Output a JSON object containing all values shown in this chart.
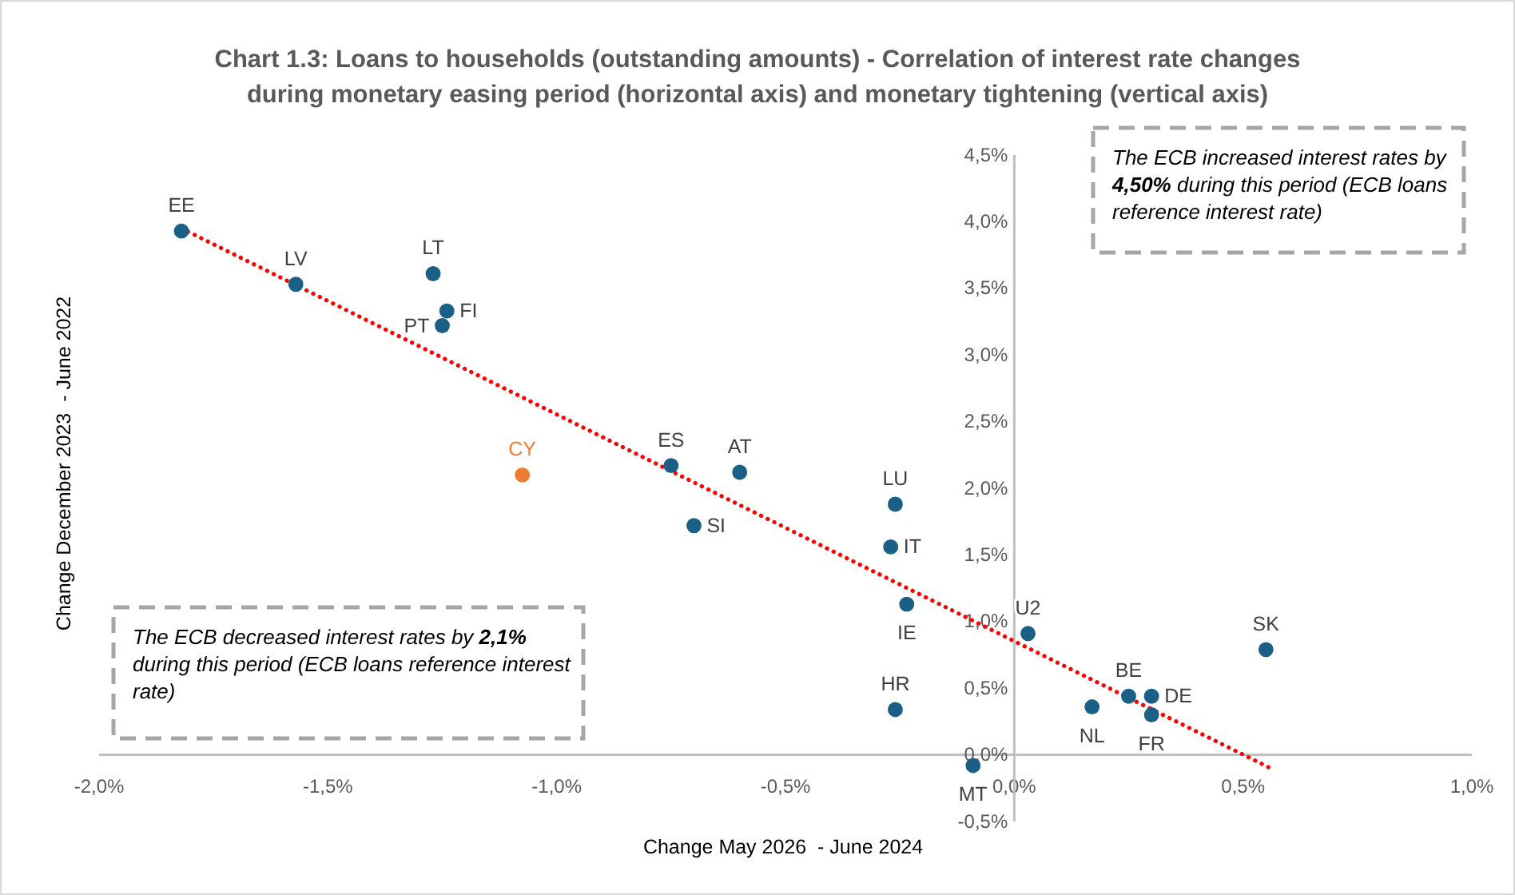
{
  "chart_data": {
    "type": "scatter",
    "title": "Chart 1.3: Loans to households (outstanding amounts) - Correlation of interest rate changes during monetary easing period (horizontal axis) and monetary tightening (vertical axis)",
    "xlabel": "Change May 2026  - June 2024",
    "ylabel": "Change December 2023  - June 2022",
    "xlim": [
      -2.0,
      1.0
    ],
    "xticks": [
      {
        "value": -2.0,
        "label": "-2,0%"
      },
      {
        "value": -1.5,
        "label": "-1,5%"
      },
      {
        "value": -1.0,
        "label": "-1,0%"
      },
      {
        "value": -0.5,
        "label": "-0,5%"
      },
      {
        "value": 0.0,
        "label": "0,0%"
      },
      {
        "value": 0.5,
        "label": "0,5%"
      },
      {
        "value": 1.0,
        "label": "1,0%"
      }
    ],
    "ylim": [
      -0.5,
      4.5
    ],
    "yticks": [
      {
        "value": -0.5,
        "label": "-0,5%"
      },
      {
        "value": 0.0,
        "label": "0,0%"
      },
      {
        "value": 0.5,
        "label": "0,5%"
      },
      {
        "value": 1.0,
        "label": "1,0%"
      },
      {
        "value": 1.5,
        "label": "1,5%"
      },
      {
        "value": 2.0,
        "label": "2,0%"
      },
      {
        "value": 2.5,
        "label": "2,5%"
      },
      {
        "value": 3.0,
        "label": "3,0%"
      },
      {
        "value": 3.5,
        "label": "3,5%"
      },
      {
        "value": 4.0,
        "label": "4,0%"
      },
      {
        "value": 4.5,
        "label": "4,5%"
      }
    ],
    "grid": false,
    "legend": false,
    "marker": "circle",
    "series": [
      {
        "type": "line",
        "x": [
          -1.82,
          0.56
        ],
        "values": [
          3.95,
          -0.1
        ],
        "color": "#ff0000",
        "line_style": "dotted",
        "marker": "none"
      },
      {
        "name": "EE",
        "x": [
          -1.82
        ],
        "values": [
          3.93
        ],
        "color": "#1a5f85"
      },
      {
        "name": "LV",
        "x": [
          -1.57
        ],
        "values": [
          3.53
        ],
        "color": "#1a5f85"
      },
      {
        "name": "LT",
        "x": [
          -1.27
        ],
        "values": [
          3.61
        ],
        "color": "#1a5f85"
      },
      {
        "name": "FI",
        "x": [
          -1.24
        ],
        "values": [
          3.33
        ],
        "color": "#1a5f85"
      },
      {
        "name": "PT",
        "x": [
          -1.25
        ],
        "values": [
          3.22
        ],
        "color": "#1a5f85"
      },
      {
        "name": "CY",
        "x": [
          -1.075
        ],
        "values": [
          2.1
        ],
        "color": "#ed7d31"
      },
      {
        "name": "ES",
        "x": [
          -0.75
        ],
        "values": [
          2.17
        ],
        "color": "#1a5f85"
      },
      {
        "name": "AT",
        "x": [
          -0.6
        ],
        "values": [
          2.12
        ],
        "color": "#1a5f85"
      },
      {
        "name": "SI",
        "x": [
          -0.7
        ],
        "values": [
          1.72
        ],
        "color": "#1a5f85"
      },
      {
        "name": "LU",
        "x": [
          -0.26
        ],
        "values": [
          1.88
        ],
        "color": "#1a5f85"
      },
      {
        "name": "IT",
        "x": [
          -0.27
        ],
        "values": [
          1.56
        ],
        "color": "#1a5f85"
      },
      {
        "name": "IE",
        "x": [
          -0.235
        ],
        "values": [
          1.13
        ],
        "color": "#1a5f85"
      },
      {
        "name": "HR",
        "x": [
          -0.26
        ],
        "values": [
          0.34
        ],
        "color": "#1a5f85"
      },
      {
        "name": "MT",
        "x": [
          -0.09
        ],
        "values": [
          -0.08
        ],
        "color": "#1a5f85"
      },
      {
        "name": "U2",
        "x": [
          0.03
        ],
        "values": [
          0.91
        ],
        "color": "#1a5f85"
      },
      {
        "name": "NL",
        "x": [
          0.17
        ],
        "values": [
          0.36
        ],
        "color": "#1a5f85"
      },
      {
        "name": "BE",
        "x": [
          0.25
        ],
        "values": [
          0.44
        ],
        "color": "#1a5f85"
      },
      {
        "name": "DE",
        "x": [
          0.3
        ],
        "values": [
          0.44
        ],
        "color": "#1a5f85"
      },
      {
        "name": "FR",
        "x": [
          0.3
        ],
        "values": [
          0.3
        ],
        "color": "#1a5f85"
      },
      {
        "name": "SK",
        "x": [
          0.55
        ],
        "values": [
          0.79
        ],
        "color": "#1a5f85"
      }
    ],
    "annotations": [
      "The ECB increased interest rates by 4,50% during this period (ECB loans reference interest rate)",
      "The ECB decreased interest rates by 2,1% during this period (ECB loans reference interest rate)"
    ]
  }
}
